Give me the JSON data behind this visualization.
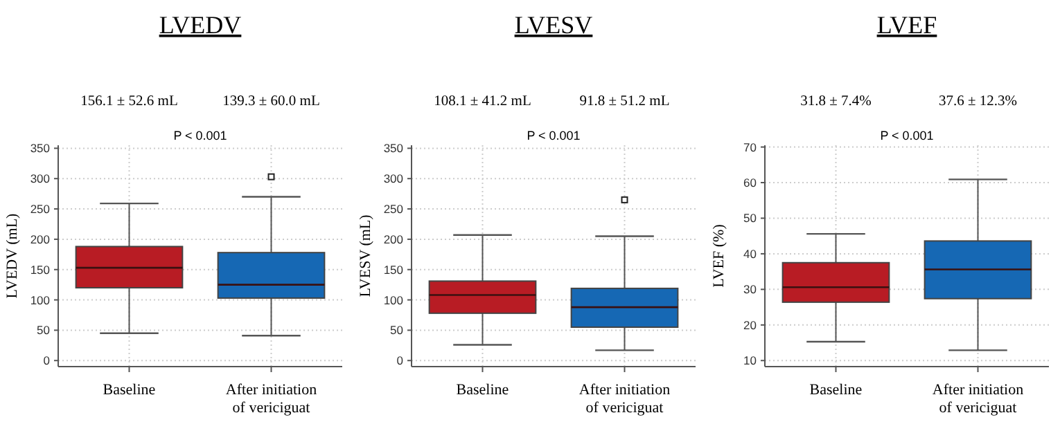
{
  "chart_data": [
    {
      "type": "box",
      "title": "LVEDV",
      "ylabel": "LVEDV (mL)",
      "categories": [
        "Baseline",
        "After initiation of vericiguat"
      ],
      "colors": [
        "#b81c24",
        "#1668b4"
      ],
      "boxes": [
        {
          "low": 45,
          "q1": 120,
          "median": 153,
          "q3": 188,
          "high": 259
        },
        {
          "low": 41,
          "q1": 103,
          "median": 125,
          "q3": 178,
          "high": 270,
          "outliers": [
            303
          ]
        }
      ],
      "ylim": [
        -10,
        355
      ],
      "yticks": [
        0,
        50,
        100,
        150,
        200,
        250,
        300,
        350
      ],
      "grid": true,
      "annotations": [
        "156.1 ± 52.6 mL",
        "139.3 ± 60.0 mL",
        "P < 0.001"
      ]
    },
    {
      "type": "box",
      "title": "LVESV",
      "ylabel": "LVESV (mL)",
      "categories": [
        "Baseline",
        "After initiation of vericiguat"
      ],
      "colors": [
        "#b81c24",
        "#1668b4"
      ],
      "boxes": [
        {
          "low": 26,
          "q1": 78,
          "median": 108,
          "q3": 131,
          "high": 207
        },
        {
          "low": 17,
          "q1": 55,
          "median": 88,
          "q3": 119,
          "high": 205,
          "outliers": [
            265
          ]
        }
      ],
      "ylim": [
        -10,
        355
      ],
      "yticks": [
        0,
        50,
        100,
        150,
        200,
        250,
        300,
        350
      ],
      "grid": true,
      "annotations": [
        "108.1 ± 41.2 mL",
        "91.8 ± 51.2 mL",
        "P < 0.001"
      ]
    },
    {
      "type": "box",
      "title": "LVEF",
      "ylabel": "LVEF (%)",
      "categories": [
        "Baseline",
        "After initiation of vericiguat"
      ],
      "colors": [
        "#b81c24",
        "#1668b4"
      ],
      "boxes": [
        {
          "low": 15.3,
          "q1": 26.4,
          "median": 30.6,
          "q3": 37.5,
          "high": 45.6
        },
        {
          "low": 12.9,
          "q1": 27.4,
          "median": 35.6,
          "q3": 43.6,
          "high": 60.9
        }
      ],
      "ylim": [
        8.3,
        70.5
      ],
      "yticks": [
        10,
        20,
        30,
        40,
        50,
        60,
        70
      ],
      "grid": true,
      "annotations": [
        "31.8 ± 7.4%",
        "37.6 ± 12.3%",
        "P < 0.001"
      ]
    }
  ]
}
